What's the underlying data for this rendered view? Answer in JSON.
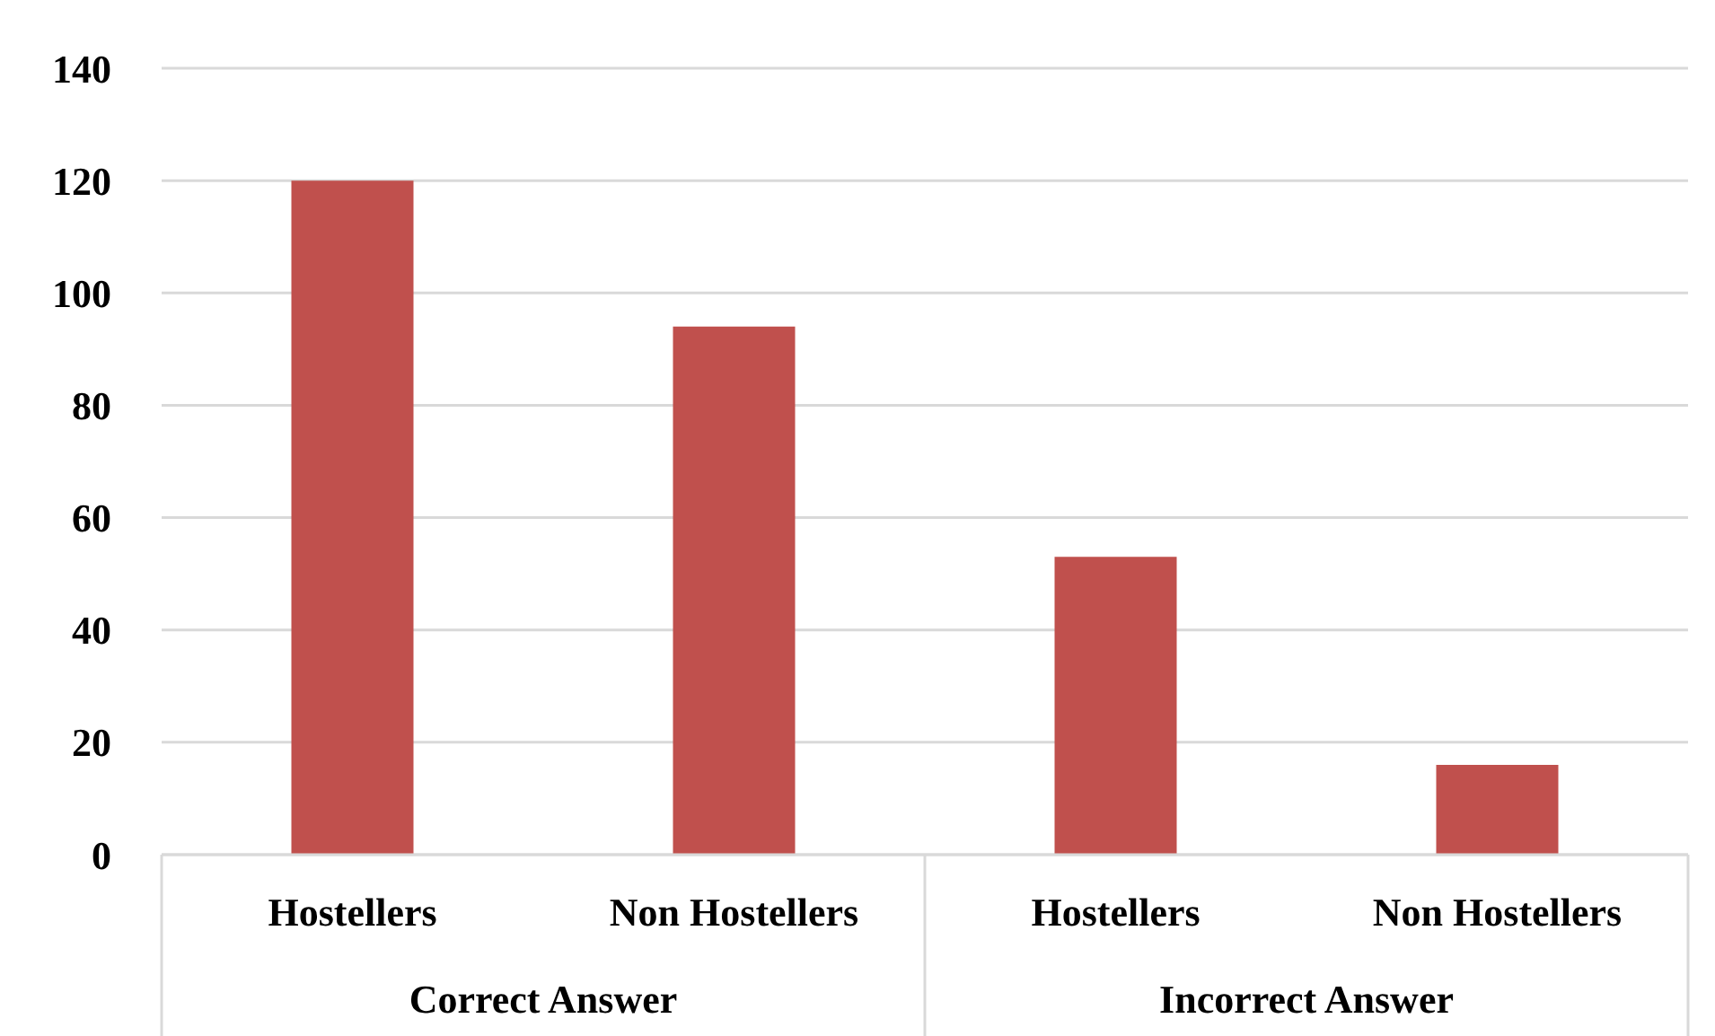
{
  "chart_data": {
    "type": "bar",
    "categories": [
      "Hostellers",
      "Non Hostellers",
      "Hostellers",
      "Non Hostellers"
    ],
    "values": [
      120,
      94,
      53,
      16
    ],
    "color": "#c0504d",
    "ylim": [
      0,
      140
    ],
    "yticks": [
      0,
      20,
      40,
      60,
      80,
      100,
      120,
      140
    ],
    "grid": "y",
    "annotations": [
      "Correct Answer",
      "Incorrect Answer"
    ]
  }
}
